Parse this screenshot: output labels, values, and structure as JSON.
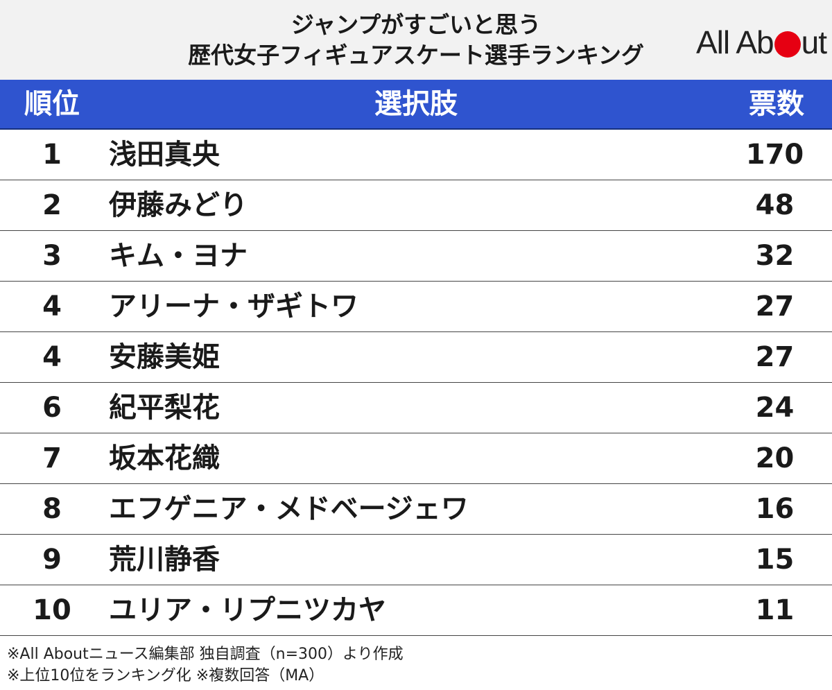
{
  "header": {
    "title_line1": "ジャンプがすごいと思う",
    "title_line2": "歴代女子フィギュアスケート選手ランキング",
    "logo_left": "All Ab",
    "logo_right": "ut"
  },
  "columns": {
    "rank": "順位",
    "name": "選択肢",
    "votes": "票数"
  },
  "chart_data": {
    "type": "table",
    "columns": [
      "順位",
      "選択肢",
      "票数"
    ],
    "rows": [
      {
        "rank": "1",
        "name": "浅田真央",
        "votes": 170
      },
      {
        "rank": "2",
        "name": "伊藤みどり",
        "votes": 48
      },
      {
        "rank": "3",
        "name": "キム・ヨナ",
        "votes": 32
      },
      {
        "rank": "4",
        "name": "アリーナ・ザギトワ",
        "votes": 27
      },
      {
        "rank": "4",
        "name": "安藤美姫",
        "votes": 27
      },
      {
        "rank": "6",
        "name": "紀平梨花",
        "votes": 24
      },
      {
        "rank": "7",
        "name": "坂本花織",
        "votes": 20
      },
      {
        "rank": "8",
        "name": "エフゲニア・メドベージェワ",
        "votes": 16
      },
      {
        "rank": "9",
        "name": "荒川静香",
        "votes": 15
      },
      {
        "rank": "10",
        "name": "ユリア・リプニツカヤ",
        "votes": 11
      }
    ]
  },
  "footnotes": {
    "line1": "※All Aboutニュース編集部 独自調査（n=300）より作成",
    "line2": "※上位10位をランキング化 ※複数回答（MA）"
  },
  "colors": {
    "header_band": "#2f54cf",
    "title_band": "#f2f2f2",
    "logo_dot": "#e60012"
  }
}
